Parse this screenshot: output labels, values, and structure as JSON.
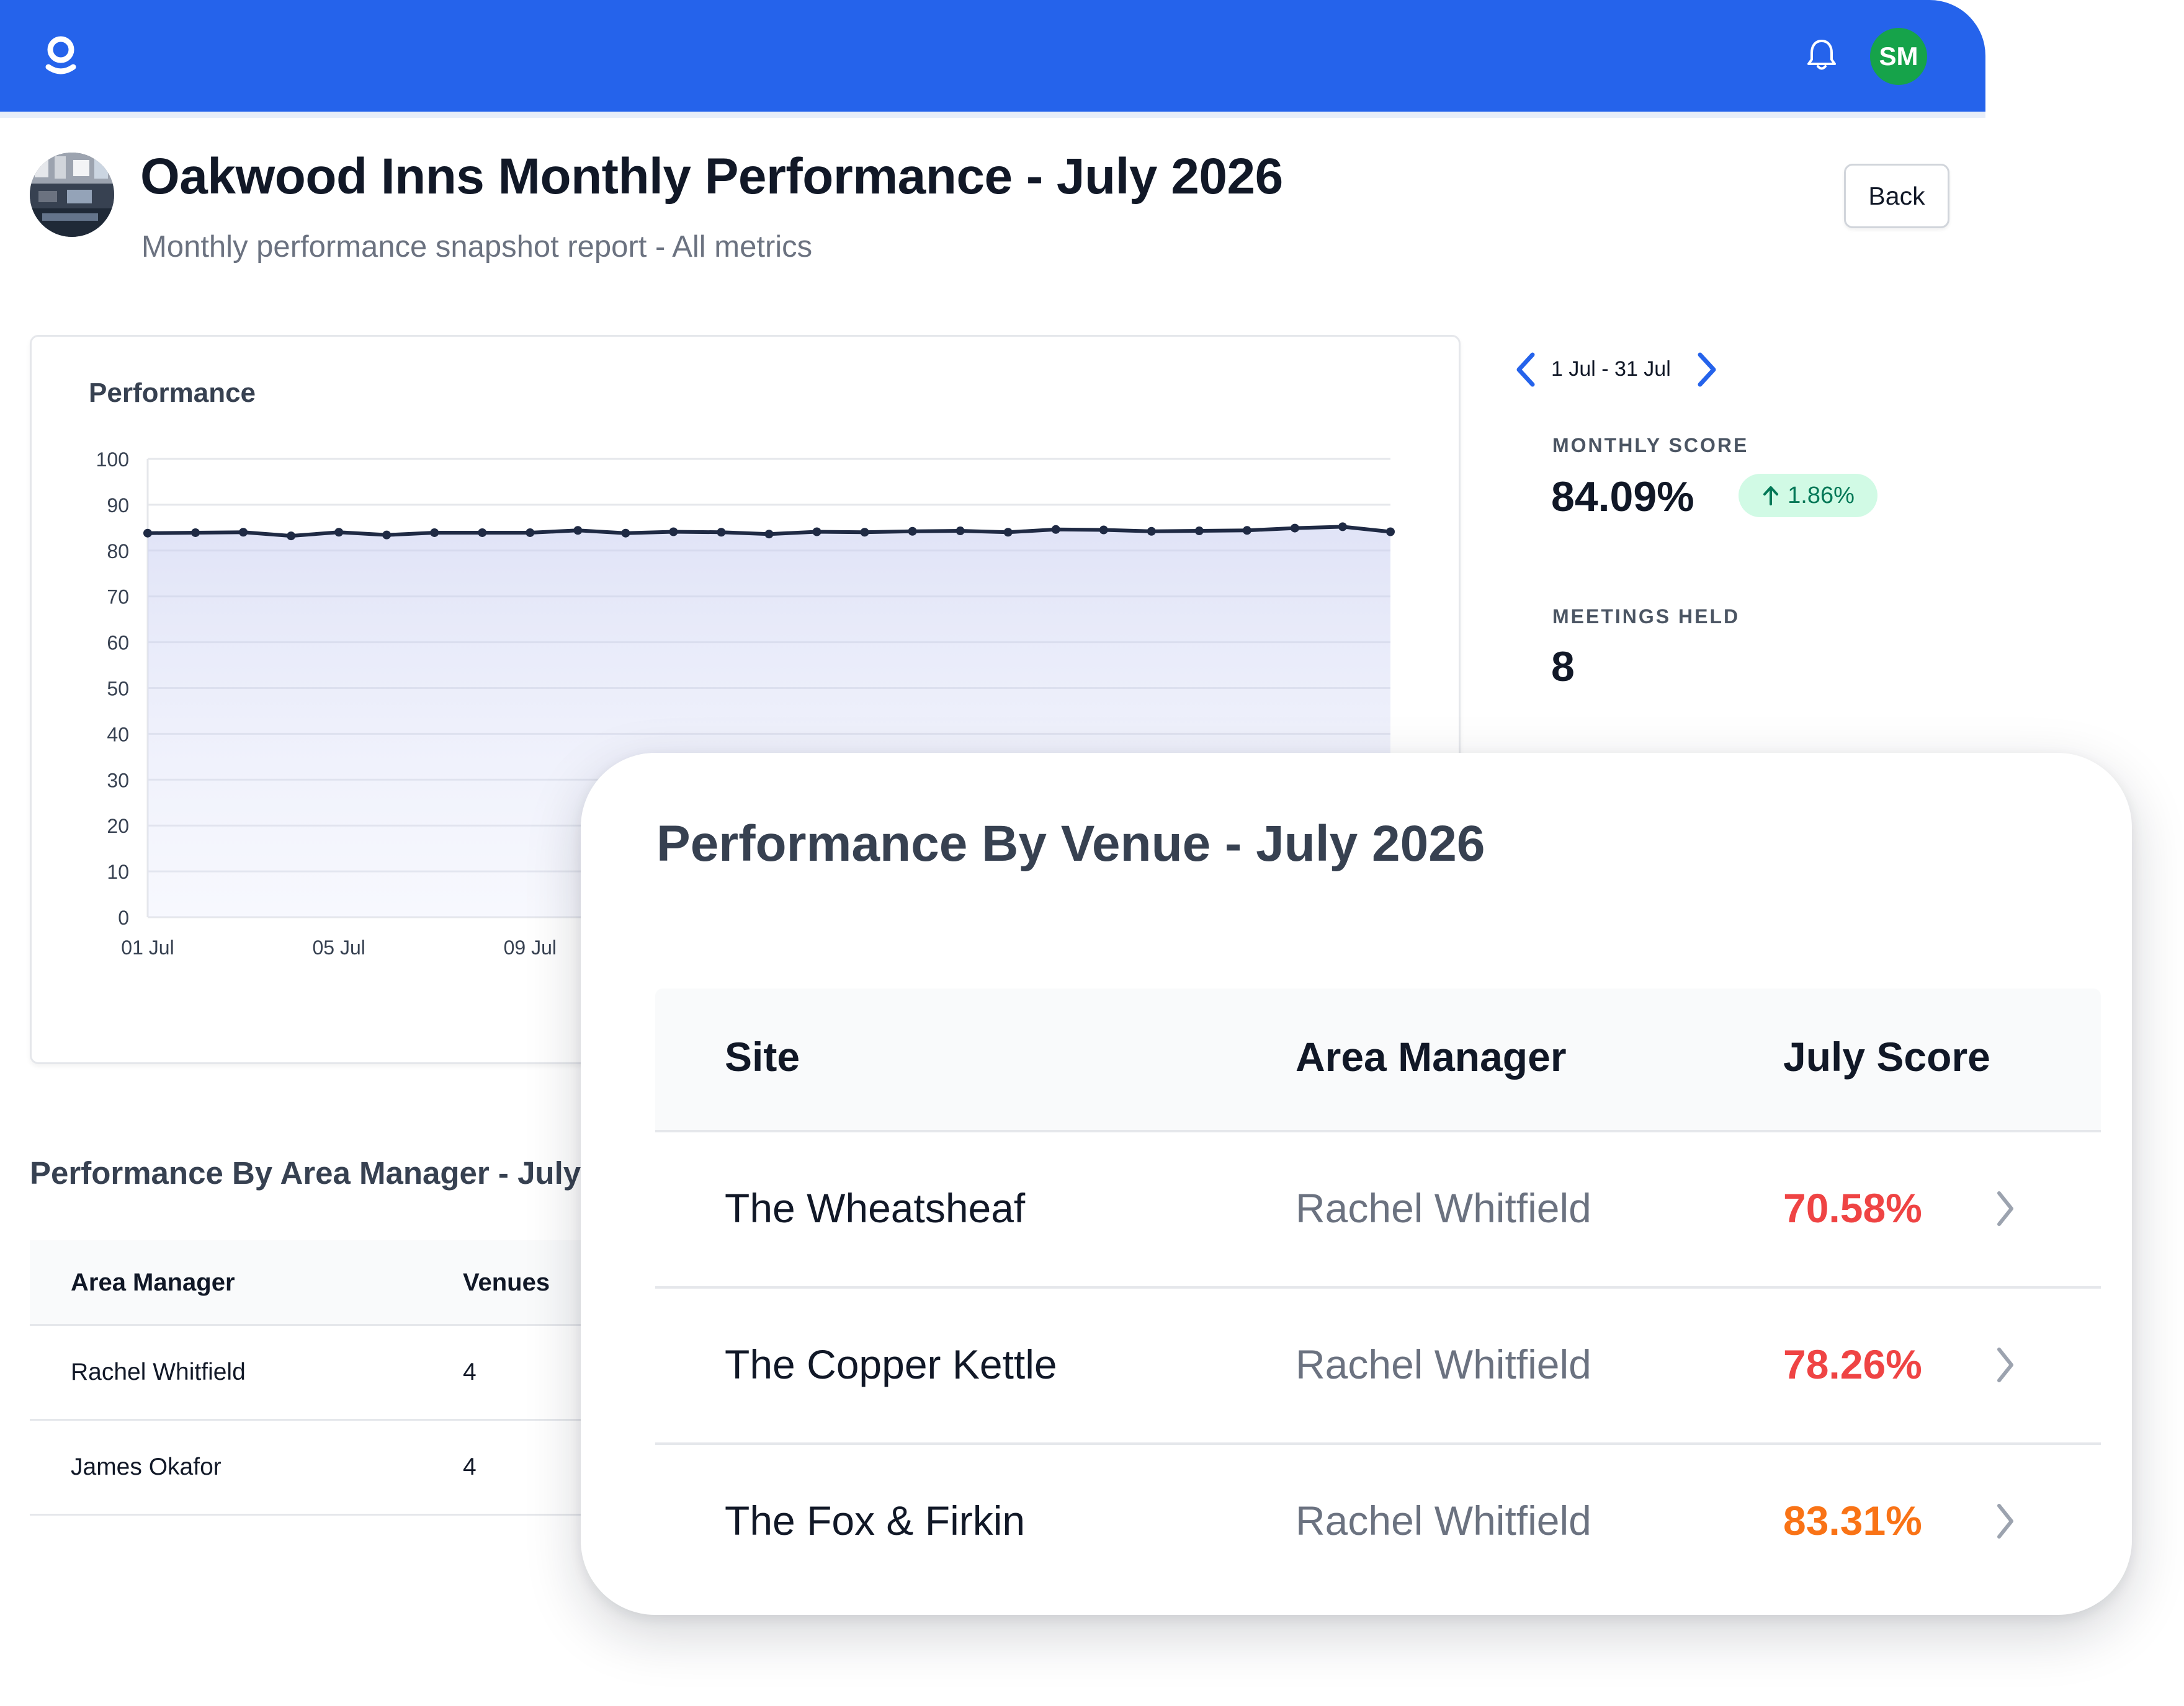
{
  "header": {
    "logo_icon": "logo-icon",
    "avatar_initials": "SM",
    "avatar_color": "#16a34a",
    "brand_color": "#2563eb"
  },
  "page": {
    "title": "Oakwood Inns Monthly Performance - July 2026",
    "subtitle": "Monthly performance snapshot report - All metrics",
    "back_label": "Back"
  },
  "date_range": {
    "label": "1 Jul - 31 Jul"
  },
  "stats": {
    "monthly_score_label": "MONTHLY SCORE",
    "monthly_score_value": "84.09%",
    "monthly_score_change": "1.86%",
    "meetings_label": "MEETINGS HELD",
    "meetings_value": "8"
  },
  "chart_data": {
    "type": "area",
    "title": "Performance",
    "x_ticks": [
      "01 Jul",
      "05 Jul",
      "09 Jul"
    ],
    "y_ticks": [
      0,
      10,
      20,
      30,
      40,
      50,
      60,
      70,
      80,
      90,
      100
    ],
    "ylim": [
      0,
      100
    ],
    "grid": true,
    "x": [
      "01 Jul",
      "02 Jul",
      "03 Jul",
      "04 Jul",
      "05 Jul",
      "06 Jul",
      "07 Jul",
      "08 Jul",
      "09 Jul",
      "10 Jul",
      "11 Jul",
      "12 Jul",
      "13 Jul",
      "14 Jul",
      "15 Jul",
      "16 Jul",
      "17 Jul",
      "18 Jul",
      "19 Jul",
      "20 Jul",
      "21 Jul",
      "22 Jul",
      "23 Jul",
      "24 Jul",
      "25 Jul",
      "26 Jul",
      "27 Jul"
    ],
    "series": [
      {
        "values": [
          83.8,
          83.9,
          84.0,
          83.2,
          84.0,
          83.4,
          83.9,
          83.9,
          83.9,
          84.4,
          83.8,
          84.1,
          84.0,
          83.6,
          84.1,
          84.0,
          84.2,
          84.3,
          84.0,
          84.6,
          84.5,
          84.2,
          84.3,
          84.4,
          84.9,
          85.2,
          84.1
        ]
      }
    ]
  },
  "area_manager_section": {
    "title": "Performance By Area Manager - July",
    "columns": [
      "Area Manager",
      "Venues"
    ],
    "rows": [
      {
        "name": "Rachel Whitfield",
        "venues": "4"
      },
      {
        "name": "James Okafor",
        "venues": "4"
      }
    ]
  },
  "venue_section": {
    "title": "Performance By Venue - July 2026",
    "columns": [
      "Site",
      "Area Manager",
      "July Score"
    ],
    "rows": [
      {
        "site": "The Wheatsheaf",
        "manager": "Rachel Whitfield",
        "score": "70.58%",
        "score_color": "#ef4444"
      },
      {
        "site": "The Copper Kettle",
        "manager": "Rachel Whitfield",
        "score": "78.26%",
        "score_color": "#ef4444"
      },
      {
        "site": "The Fox & Firkin",
        "manager": "Rachel Whitfield",
        "score": "83.31%",
        "score_color": "#f97316"
      }
    ]
  }
}
